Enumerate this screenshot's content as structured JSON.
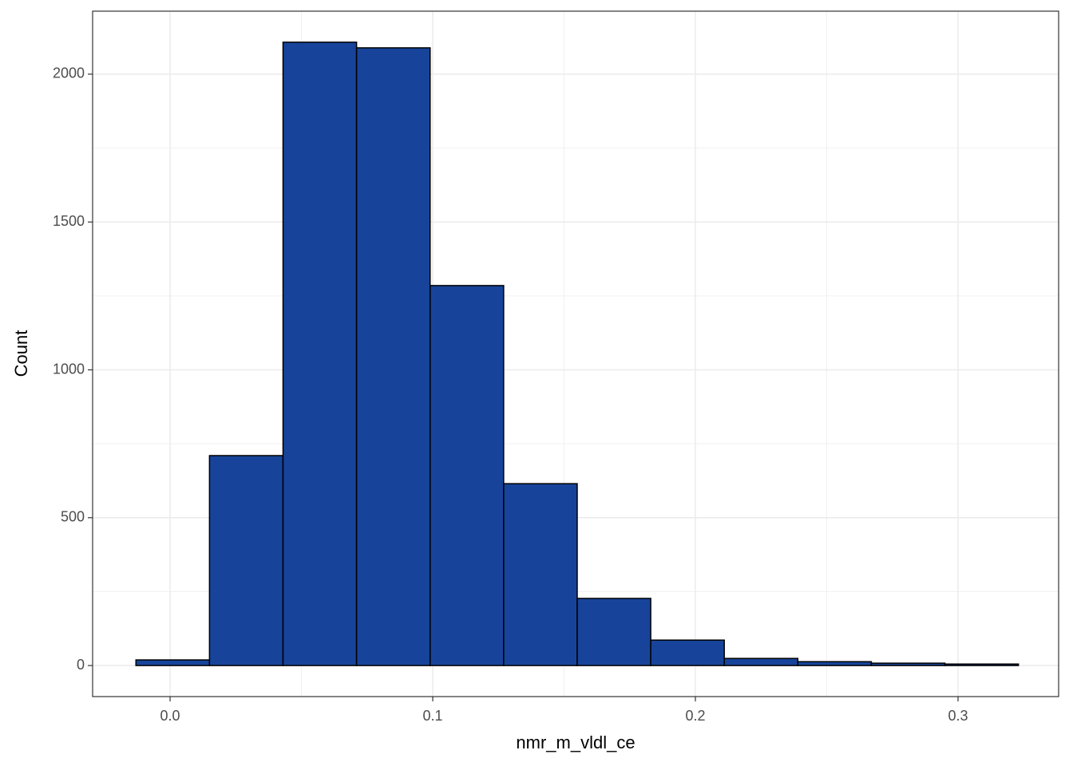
{
  "chart_data": {
    "type": "histogram",
    "x_label": "nmr_m_vldl_ce",
    "y_label": "Count",
    "bins": [
      -0.013,
      0.015,
      0.043,
      0.071,
      0.099,
      0.127,
      0.155,
      0.183,
      0.211,
      0.239,
      0.267,
      0.295,
      0.323
    ],
    "counts": [
      19,
      710,
      2108,
      2089,
      1285,
      615,
      227,
      86,
      24,
      13,
      8,
      5
    ],
    "color": "#17449a",
    "edgecolor": "#000000",
    "xlim": [
      -0.0295,
      0.3383
    ],
    "ylim": [
      -105,
      2213
    ],
    "xticks": [
      {
        "value": 0,
        "label": "0.0"
      },
      0.1,
      0.2,
      0.3
    ],
    "yticks": [
      0,
      500,
      1000,
      1500,
      2000
    ],
    "grid": true
  }
}
